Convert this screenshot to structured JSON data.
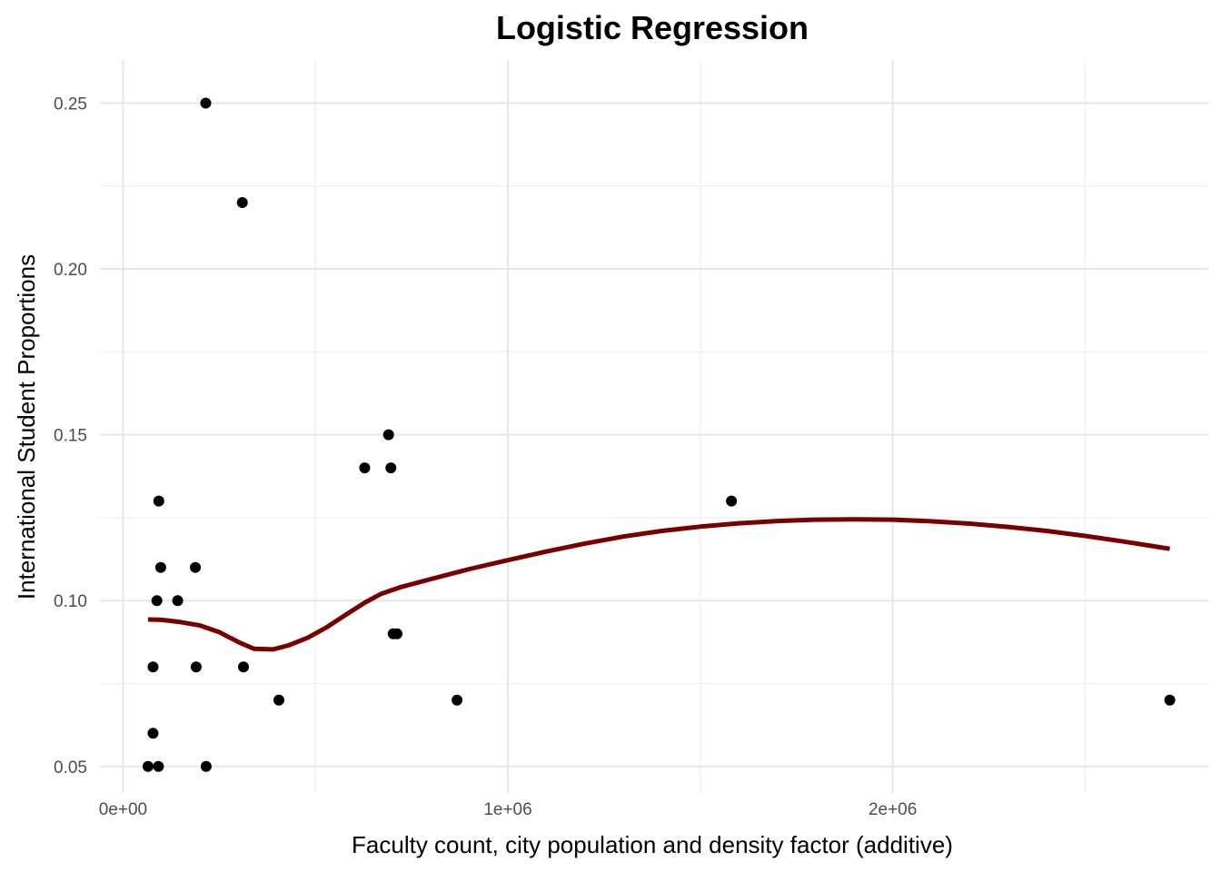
{
  "chart_data": {
    "type": "scatter",
    "title": "Logistic Regression",
    "xlabel": "Faculty count, city population and density factor (additive)",
    "ylabel": "International Student Proportions",
    "xlim": [
      -60000,
      2820000
    ],
    "ylim": [
      0.042,
      0.263
    ],
    "x_ticks": [
      {
        "value": 0,
        "label": "0e+00"
      },
      {
        "value": 1000000,
        "label": "1e+06"
      },
      {
        "value": 2000000,
        "label": "2e+06"
      }
    ],
    "x_minor_ticks": [
      500000,
      1500000,
      2500000
    ],
    "y_ticks": [
      {
        "value": 0.05,
        "label": "0.05"
      },
      {
        "value": 0.1,
        "label": "0.10"
      },
      {
        "value": 0.15,
        "label": "0.15"
      },
      {
        "value": 0.2,
        "label": "0.20"
      },
      {
        "value": 0.25,
        "label": "0.25"
      }
    ],
    "y_minor_ticks": [
      0.075,
      0.125,
      0.175,
      0.225
    ],
    "grid": true,
    "series": [
      {
        "type": "scatter",
        "color": "#000000",
        "points": [
          {
            "x": 215000,
            "y": 0.25
          },
          {
            "x": 310000,
            "y": 0.22
          },
          {
            "x": 690000,
            "y": 0.15
          },
          {
            "x": 628000,
            "y": 0.14
          },
          {
            "x": 696000,
            "y": 0.14
          },
          {
            "x": 93000,
            "y": 0.13
          },
          {
            "x": 1581000,
            "y": 0.13
          },
          {
            "x": 98000,
            "y": 0.11
          },
          {
            "x": 188000,
            "y": 0.11
          },
          {
            "x": 88000,
            "y": 0.1
          },
          {
            "x": 142000,
            "y": 0.1
          },
          {
            "x": 702000,
            "y": 0.09
          },
          {
            "x": 712000,
            "y": 0.09
          },
          {
            "x": 78000,
            "y": 0.08
          },
          {
            "x": 190000,
            "y": 0.08
          },
          {
            "x": 313000,
            "y": 0.08
          },
          {
            "x": 405000,
            "y": 0.07
          },
          {
            "x": 868000,
            "y": 0.07
          },
          {
            "x": 2720000,
            "y": 0.07
          },
          {
            "x": 78000,
            "y": 0.06
          },
          {
            "x": 65000,
            "y": 0.05
          },
          {
            "x": 92000,
            "y": 0.05
          },
          {
            "x": 216000,
            "y": 0.05
          }
        ]
      },
      {
        "type": "line",
        "color": "#7a0000",
        "points": [
          {
            "x": 65000,
            "y": 0.0943
          },
          {
            "x": 100000,
            "y": 0.0942
          },
          {
            "x": 150000,
            "y": 0.0935
          },
          {
            "x": 200000,
            "y": 0.0925
          },
          {
            "x": 250000,
            "y": 0.0905
          },
          {
            "x": 300000,
            "y": 0.0875
          },
          {
            "x": 340000,
            "y": 0.0855
          },
          {
            "x": 390000,
            "y": 0.0853
          },
          {
            "x": 430000,
            "y": 0.0865
          },
          {
            "x": 480000,
            "y": 0.0888
          },
          {
            "x": 530000,
            "y": 0.092
          },
          {
            "x": 580000,
            "y": 0.0958
          },
          {
            "x": 630000,
            "y": 0.0995
          },
          {
            "x": 670000,
            "y": 0.102
          },
          {
            "x": 720000,
            "y": 0.104
          },
          {
            "x": 800000,
            "y": 0.1065
          },
          {
            "x": 900000,
            "y": 0.1095
          },
          {
            "x": 1000000,
            "y": 0.1122
          },
          {
            "x": 1100000,
            "y": 0.1148
          },
          {
            "x": 1200000,
            "y": 0.1172
          },
          {
            "x": 1300000,
            "y": 0.1193
          },
          {
            "x": 1400000,
            "y": 0.121
          },
          {
            "x": 1500000,
            "y": 0.1223
          },
          {
            "x": 1600000,
            "y": 0.1233
          },
          {
            "x": 1700000,
            "y": 0.124
          },
          {
            "x": 1800000,
            "y": 0.1244
          },
          {
            "x": 1900000,
            "y": 0.1245
          },
          {
            "x": 2000000,
            "y": 0.1244
          },
          {
            "x": 2100000,
            "y": 0.1239
          },
          {
            "x": 2200000,
            "y": 0.1232
          },
          {
            "x": 2300000,
            "y": 0.1222
          },
          {
            "x": 2400000,
            "y": 0.121
          },
          {
            "x": 2500000,
            "y": 0.1195
          },
          {
            "x": 2600000,
            "y": 0.1178
          },
          {
            "x": 2720000,
            "y": 0.1156
          }
        ]
      }
    ]
  }
}
